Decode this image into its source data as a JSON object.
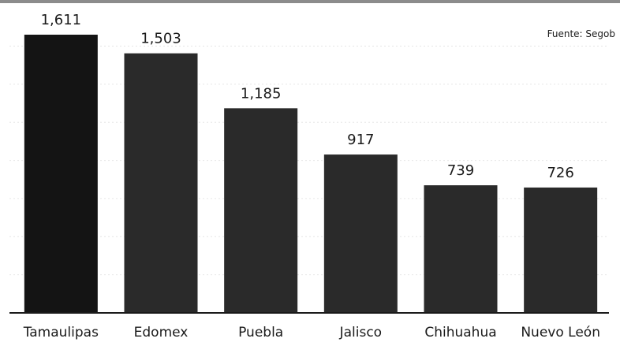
{
  "source": "Fuente: Segob",
  "colors": {
    "first_bar": "#141414",
    "bar": "#2a2a2a",
    "text": "#1a1a1a"
  },
  "chart_data": {
    "type": "bar",
    "categories": [
      "Tamaulipas",
      "Edomex",
      "Puebla",
      "Jalisco",
      "Chihuahua",
      "Nuevo León"
    ],
    "values": [
      1611,
      1503,
      1185,
      917,
      739,
      726
    ],
    "value_labels": [
      "1,611",
      "1,503",
      "1,185",
      "917",
      "739",
      "726"
    ],
    "ylim": [
      0,
      1611
    ],
    "grid": true,
    "legend": "none"
  }
}
